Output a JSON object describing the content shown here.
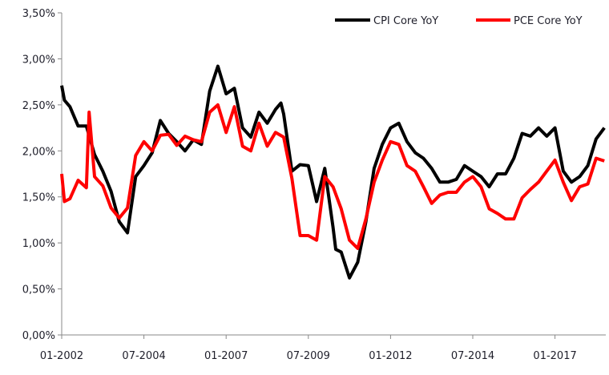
{
  "chart_data": {
    "type": "line",
    "title": "",
    "xlabel": "",
    "ylabel": "",
    "x_unit": "months since 01-2002",
    "xlim": [
      0,
      198
    ],
    "ylim": [
      0,
      3.5
    ],
    "y_ticks": [
      0,
      0.5,
      1.0,
      1.5,
      2.0,
      2.5,
      3.0,
      3.5
    ],
    "y_tick_labels": [
      "0,00%",
      "0,50%",
      "1,00%",
      "1,50%",
      "2,00%",
      "2,50%",
      "3,00%",
      "3,50%"
    ],
    "x_ticks": [
      0,
      30,
      60,
      90,
      120,
      150,
      180
    ],
    "x_tick_labels": [
      "01-2002",
      "07-2004",
      "01-2007",
      "07-2009",
      "01-2012",
      "07-2014",
      "01-2017"
    ],
    "grid": false,
    "legend_position": "top-right",
    "series": [
      {
        "name": "CPI Core YoY",
        "color": "#000000",
        "x": [
          0,
          1,
          3,
          6,
          9,
          12,
          15,
          18,
          21,
          24,
          27,
          30,
          33,
          36,
          39,
          42,
          45,
          48,
          51,
          54,
          57,
          60,
          63,
          66,
          69,
          72,
          75,
          78,
          80,
          81,
          84,
          87,
          90,
          93,
          96,
          99,
          100,
          102,
          105,
          108,
          111,
          114,
          117,
          120,
          123,
          126,
          129,
          132,
          135,
          138,
          141,
          144,
          147,
          150,
          153,
          156,
          159,
          162,
          165,
          168,
          171,
          174,
          177,
          180,
          183,
          186,
          189,
          192,
          195,
          198
        ],
        "values": [
          2.71,
          2.55,
          2.48,
          2.27,
          2.27,
          1.96,
          1.78,
          1.56,
          1.23,
          1.11,
          1.72,
          1.84,
          1.98,
          2.33,
          2.19,
          2.1,
          2.0,
          2.12,
          2.07,
          2.65,
          2.92,
          2.62,
          2.68,
          2.25,
          2.15,
          2.42,
          2.3,
          2.45,
          2.52,
          2.4,
          1.78,
          1.85,
          1.84,
          1.45,
          1.81,
          1.17,
          0.93,
          0.9,
          0.62,
          0.79,
          1.23,
          1.81,
          2.07,
          2.25,
          2.3,
          2.1,
          1.98,
          1.92,
          1.81,
          1.66,
          1.66,
          1.69,
          1.84,
          1.78,
          1.72,
          1.61,
          1.75,
          1.75,
          1.92,
          2.19,
          2.16,
          2.25,
          2.16,
          2.25,
          1.78,
          1.66,
          1.72,
          1.84,
          2.13,
          2.25
        ]
      },
      {
        "name": "PCE Core YoY",
        "color": "#ff0000",
        "x": [
          0,
          1,
          3,
          6,
          9,
          10,
          12,
          15,
          18,
          21,
          24,
          27,
          30,
          33,
          36,
          39,
          42,
          45,
          48,
          51,
          54,
          57,
          60,
          63,
          66,
          69,
          72,
          75,
          78,
          81,
          84,
          87,
          90,
          93,
          96,
          99,
          102,
          105,
          108,
          111,
          114,
          117,
          120,
          123,
          126,
          129,
          132,
          135,
          138,
          141,
          144,
          147,
          150,
          153,
          156,
          159,
          162,
          165,
          168,
          171,
          174,
          177,
          180,
          183,
          186,
          189,
          192,
          195,
          198
        ],
        "values": [
          1.75,
          1.45,
          1.48,
          1.68,
          1.6,
          2.42,
          1.72,
          1.62,
          1.38,
          1.27,
          1.38,
          1.95,
          2.1,
          2.0,
          2.17,
          2.18,
          2.06,
          2.16,
          2.12,
          2.1,
          2.42,
          2.5,
          2.2,
          2.48,
          2.05,
          2.0,
          2.3,
          2.05,
          2.2,
          2.15,
          1.7,
          1.08,
          1.08,
          1.03,
          1.72,
          1.61,
          1.37,
          1.03,
          0.94,
          1.26,
          1.66,
          1.9,
          2.1,
          2.07,
          1.84,
          1.78,
          1.61,
          1.43,
          1.52,
          1.55,
          1.55,
          1.66,
          1.72,
          1.61,
          1.37,
          1.32,
          1.26,
          1.26,
          1.49,
          1.58,
          1.66,
          1.78,
          1.9,
          1.66,
          1.46,
          1.61,
          1.64,
          1.92,
          1.89
        ]
      }
    ]
  }
}
